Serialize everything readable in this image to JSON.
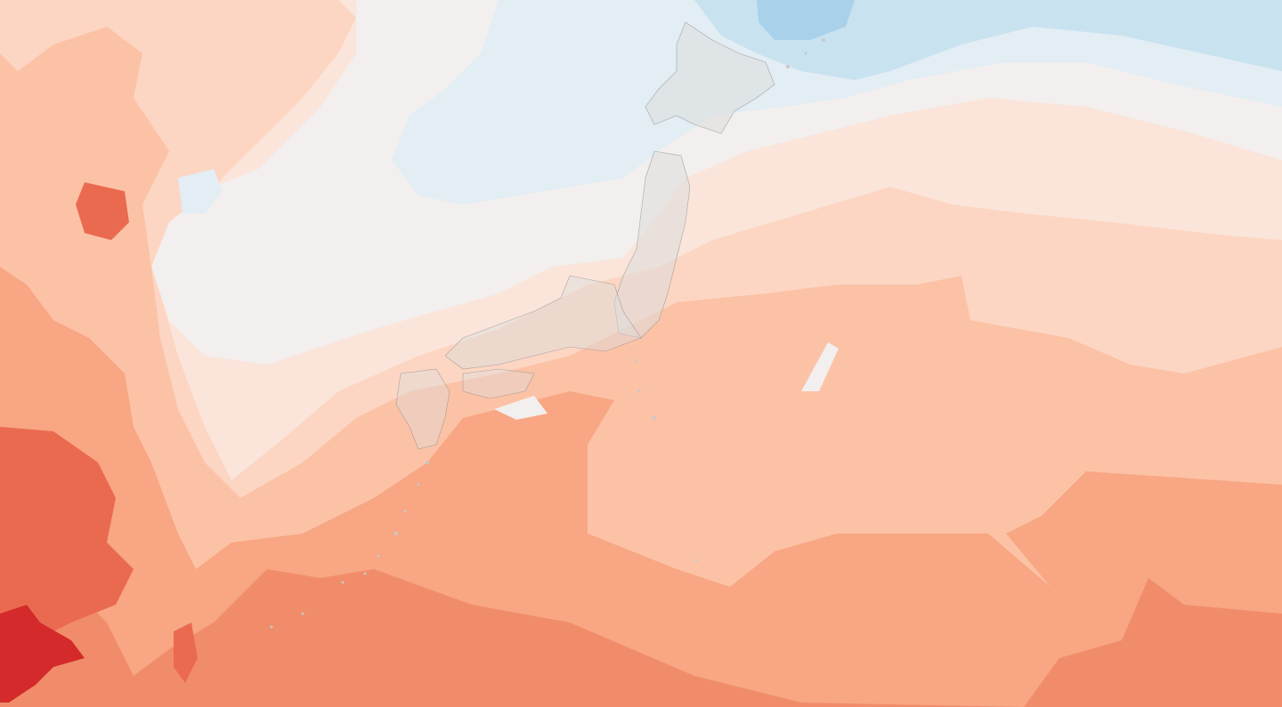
{
  "map": {
    "subject": "temperature-anomaly-contour-map",
    "region": "japan",
    "colors": {
      "band_cold_strong": "#a9d2ea",
      "band_cold": "#c9e2f0",
      "band_cool": "#e2edf4",
      "band_neutral": "#f2efee",
      "band_warm_1": "#fbe5da",
      "band_warm_2": "#fcd6c3",
      "band_warm_3": "#fcc2a6",
      "band_warm_4": "#f8a683",
      "band_hot": "#f18c6a",
      "band_hotter": "#ea6a50",
      "band_hottest": "#d42a2b",
      "land_overlay": "#dcdcdc",
      "border": "#8a8a8a"
    }
  }
}
